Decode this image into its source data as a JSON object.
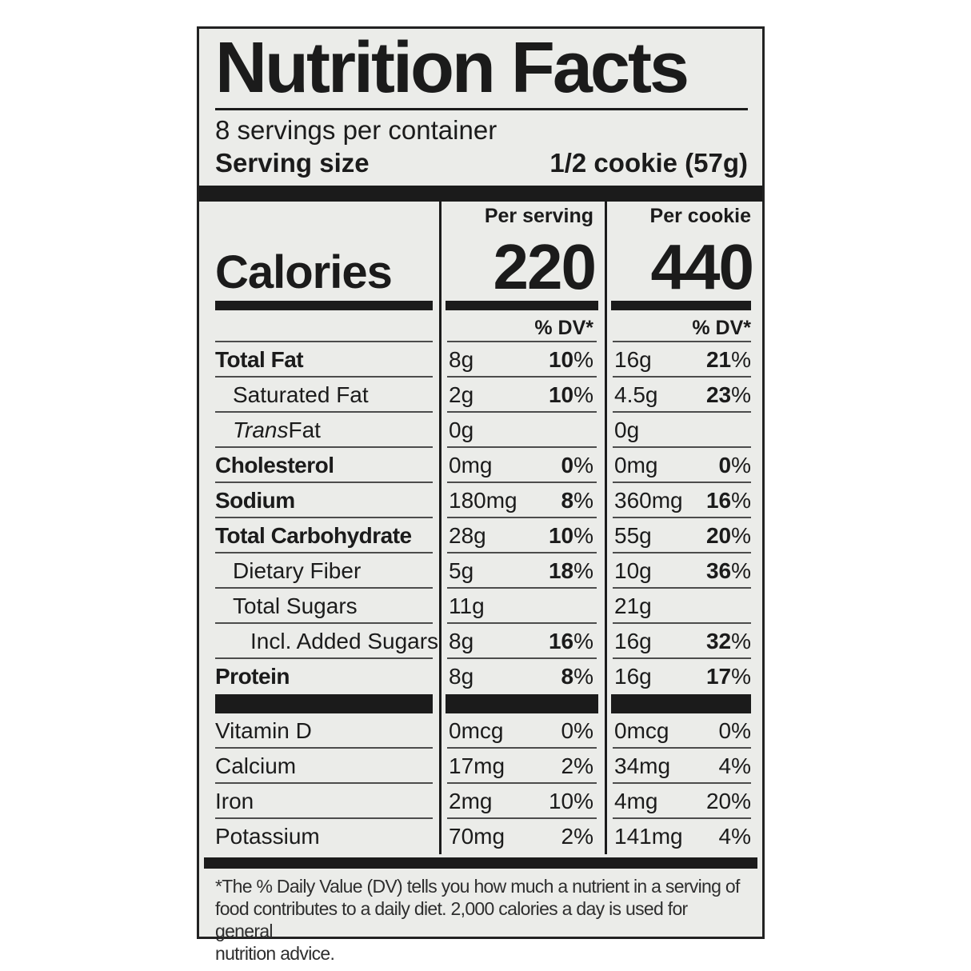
{
  "label": {
    "title": "Nutrition Facts",
    "servings_per_container": "8 servings per container",
    "serving_size": {
      "label": "Serving size",
      "value": "1/2 cookie (57g)"
    },
    "calories": {
      "label": "Calories",
      "col_serving": {
        "header": "Per serving",
        "value": "220"
      },
      "col_cookie": {
        "header": "Per cookie",
        "value": "440"
      }
    },
    "dv_header": "% DV*",
    "nutrients": [
      {
        "name": "Total Fat",
        "bold": true,
        "indent": 0,
        "serving_amount": "8g",
        "serving_dv": "10%",
        "cookie_amount": "16g",
        "cookie_dv": "21%",
        "dv_bold": true
      },
      {
        "name": "Saturated Fat",
        "bold": false,
        "indent": 1,
        "serving_amount": "2g",
        "serving_dv": "10%",
        "cookie_amount": "4.5g",
        "cookie_dv": "23%",
        "dv_bold": true
      },
      {
        "name": "Trans Fat",
        "bold": false,
        "italic_first_word": true,
        "indent": 1,
        "serving_amount": "0g",
        "serving_dv": "",
        "cookie_amount": "0g",
        "cookie_dv": "",
        "dv_bold": true
      },
      {
        "name": "Cholesterol",
        "bold": true,
        "indent": 0,
        "serving_amount": "0mg",
        "serving_dv": "0%",
        "cookie_amount": "0mg",
        "cookie_dv": "0%",
        "dv_bold": true
      },
      {
        "name": "Sodium",
        "bold": true,
        "indent": 0,
        "serving_amount": "180mg",
        "serving_dv": "8%",
        "cookie_amount": "360mg",
        "cookie_dv": "16%",
        "dv_bold": true
      },
      {
        "name": "Total Carbohydrate",
        "bold": true,
        "indent": 0,
        "serving_amount": "28g",
        "serving_dv": "10%",
        "cookie_amount": "55g",
        "cookie_dv": "20%",
        "dv_bold": true
      },
      {
        "name": "Dietary Fiber",
        "bold": false,
        "indent": 1,
        "serving_amount": "5g",
        "serving_dv": "18%",
        "cookie_amount": "10g",
        "cookie_dv": "36%",
        "dv_bold": true
      },
      {
        "name": "Total Sugars",
        "bold": false,
        "indent": 1,
        "serving_amount": "11g",
        "serving_dv": "",
        "cookie_amount": "21g",
        "cookie_dv": "",
        "dv_bold": true
      },
      {
        "name": "Incl. Added Sugars",
        "bold": false,
        "indent": 2,
        "serving_amount": "8g",
        "serving_dv": "16%",
        "cookie_amount": "16g",
        "cookie_dv": "32%",
        "dv_bold": true
      },
      {
        "name": "Protein",
        "bold": true,
        "indent": 0,
        "serving_amount": "8g",
        "serving_dv": "8%",
        "cookie_amount": "16g",
        "cookie_dv": "17%",
        "dv_bold": true,
        "last": true
      }
    ],
    "micronutrients": [
      {
        "name": "Vitamin D",
        "serving_amount": "0mcg",
        "serving_dv": "0%",
        "cookie_amount": "0mcg",
        "cookie_dv": "0%"
      },
      {
        "name": "Calcium",
        "serving_amount": "17mg",
        "serving_dv": "2%",
        "cookie_amount": "34mg",
        "cookie_dv": "4%"
      },
      {
        "name": "Iron",
        "serving_amount": "2mg",
        "serving_dv": "10%",
        "cookie_amount": "4mg",
        "cookie_dv": "20%"
      },
      {
        "name": "Potassium",
        "serving_amount": "70mg",
        "serving_dv": "2%",
        "cookie_amount": "141mg",
        "cookie_dv": "4%",
        "last": true
      }
    ],
    "footnote": "*The % Daily Value (DV) tells you how much a nutrient in a serving of\nfood contributes to a daily diet. 2,000 calories a day is used for general\nnutrition advice."
  }
}
